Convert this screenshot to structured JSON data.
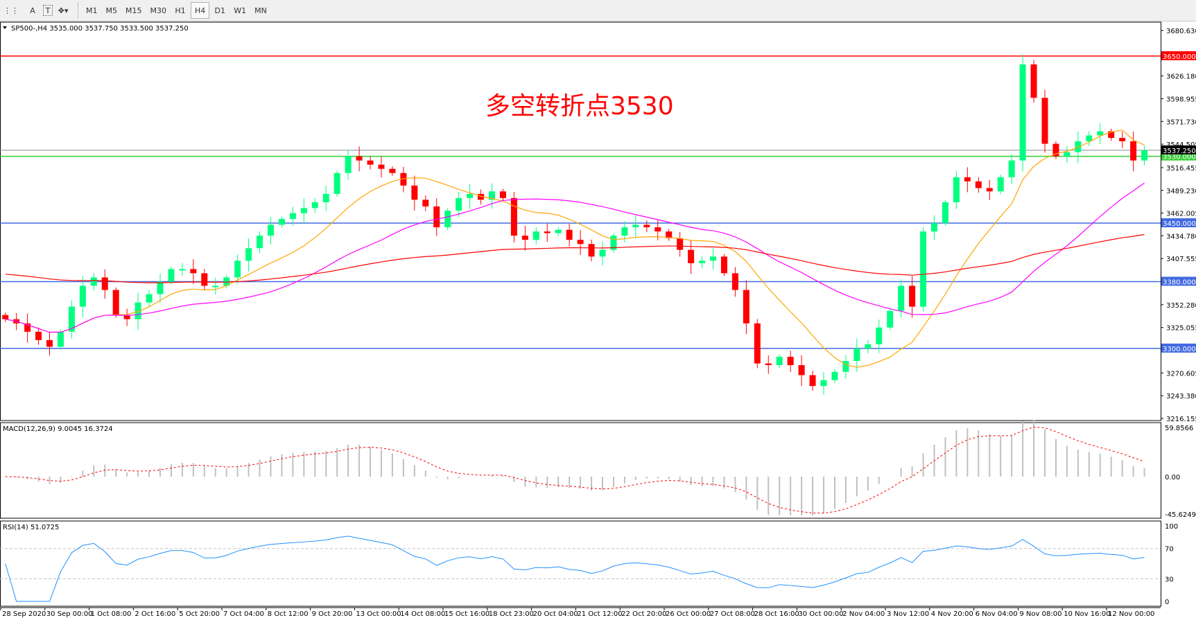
{
  "toolbar": {
    "items": [
      {
        "icon": "grid-f-icon",
        "label": ""
      },
      {
        "icon": "text-a-icon",
        "label": "A"
      },
      {
        "icon": "text-box-icon",
        "label": "T"
      },
      {
        "icon": "shapes-dropdown-icon",
        "label": "▾"
      }
    ],
    "timeframes": [
      "M1",
      "M5",
      "M15",
      "M30",
      "H1",
      "H4",
      "D1",
      "W1",
      "MN"
    ],
    "active": "H4"
  },
  "chart_data": {
    "type": "candlestick",
    "symbol_label": "SP500-,H4  3535.000 3537.750 3533.500 3537.250",
    "annotation": "多空转折点3530",
    "annotation_color": "#ff0000",
    "up_color": "#00ff80",
    "down_color": "#ff0000",
    "price_axis": {
      "ylim": [
        3216.155,
        3680.63
      ],
      "ticks": [
        "3680.630",
        "3626.180",
        "3598.955",
        "3571.730",
        "3544.505",
        "3516.455",
        "3489.230",
        "3462.005",
        "3434.780",
        "3407.555",
        "3352.280",
        "3325.055",
        "3270.605",
        "3243.380",
        "3216.155"
      ]
    },
    "levels": [
      {
        "value": 3650,
        "label": "3650.000",
        "color": "#ff0000"
      },
      {
        "value": 3530,
        "label": "3530.000",
        "color": "#33cc33"
      },
      {
        "value": 3450,
        "label": "3450.000",
        "color": "#4169e1"
      },
      {
        "value": 3380,
        "label": "3380.000",
        "color": "#4169e1"
      },
      {
        "value": 3300,
        "label": "3300.000",
        "color": "#4169e1"
      }
    ],
    "current_price": {
      "value": 3537.25,
      "label": "3537.250"
    },
    "moving_averages": [
      {
        "color": "#ffa500"
      },
      {
        "color": "#ff00ff"
      },
      {
        "color": "#ff0000"
      }
    ],
    "closes": [
      3335,
      3330,
      3320,
      3310,
      3302,
      3320,
      3350,
      3375,
      3385,
      3370,
      3340,
      3335,
      3355,
      3365,
      3380,
      3395,
      3395,
      3390,
      3375,
      3375,
      3385,
      3405,
      3420,
      3435,
      3448,
      3455,
      3462,
      3468,
      3475,
      3485,
      3510,
      3530,
      3525,
      3520,
      3515,
      3510,
      3495,
      3478,
      3470,
      3445,
      3465,
      3480,
      3485,
      3478,
      3488,
      3480,
      3435,
      3430,
      3440,
      3438,
      3442,
      3430,
      3425,
      3410,
      3418,
      3435,
      3445,
      3448,
      3445,
      3440,
      3432,
      3418,
      3402,
      3405,
      3410,
      3390,
      3370,
      3330,
      3282,
      3280,
      3290,
      3280,
      3268,
      3255,
      3262,
      3272,
      3285,
      3300,
      3305,
      3325,
      3345,
      3375,
      3350,
      3440,
      3450,
      3475,
      3505,
      3500,
      3492,
      3488,
      3505,
      3525,
      3640,
      3600,
      3545,
      3530,
      3535,
      3548,
      3555,
      3560,
      3552,
      3548,
      3525,
      3537.25
    ],
    "macd": {
      "label": "MACD(12,26,9) 9.0045 16.3724",
      "ticks": [
        "59.8566",
        "0.00",
        "-45.6249"
      ],
      "range": [
        -45.6249,
        59.8566
      ]
    },
    "rsi": {
      "label": "RSI(14) 51.0725",
      "ticks": [
        "100",
        "70",
        "30",
        "0"
      ]
    },
    "time_labels": [
      "28 Sep 2020",
      "30 Sep 00:00",
      "1 Oct 08:00",
      "2 Oct 16:00",
      "5 Oct 20:00",
      "7 Oct 04:00",
      "8 Oct 12:00",
      "9 Oct 20:00",
      "13 Oct 00:00",
      "14 Oct 08:00",
      "15 Oct 16:00",
      "18 Oct 23:00",
      "20 Oct 04:00",
      "21 Oct 12:00",
      "22 Oct 20:00",
      "26 Oct 00:00",
      "27 Oct 08:00",
      "28 Oct 16:00",
      "30 Oct 00:00",
      "2 Nov 04:00",
      "3 Nov 12:00",
      "4 Nov 20:00",
      "6 Nov 04:00",
      "9 Nov 08:00",
      "10 Nov 16:00",
      "12 Nov 00:00"
    ]
  }
}
